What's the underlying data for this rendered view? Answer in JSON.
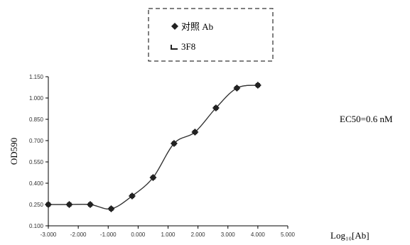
{
  "chart_data": {
    "type": "line",
    "title": "",
    "xlabel": "Log₁₀[Ab]",
    "ylabel": "OD590",
    "x_ticks": [
      "-3.000",
      "-2.000",
      "-1.000",
      "0.000",
      "1.000",
      "2.000",
      "3.000",
      "4.000",
      "5.000"
    ],
    "y_ticks": [
      "0.100",
      "0.250",
      "0.400",
      "0.550",
      "0.700",
      "0.850",
      "1.000",
      "1.150"
    ],
    "xlim": [
      -3,
      5
    ],
    "ylim": [
      0.1,
      1.15
    ],
    "legend": {
      "placement": "top-center",
      "entries": [
        "对照 Ab",
        "3F8"
      ]
    },
    "annotation": "EC50=0.6 nM",
    "series": [
      {
        "name": "对照 Ab",
        "marker": "diamond",
        "x": [
          -3.0,
          -2.3,
          -1.6,
          -0.9,
          -0.2,
          0.5,
          1.2,
          1.9,
          2.6,
          3.3,
          4.0
        ],
        "y": [
          0.25,
          0.25,
          0.25,
          0.22,
          0.31,
          0.44,
          0.68,
          0.76,
          0.93,
          1.07,
          1.09
        ]
      },
      {
        "name": "3F8",
        "marker": "square",
        "x": [
          -3.0,
          -2.3,
          -1.6,
          -0.9,
          -0.2,
          0.5,
          1.2,
          1.9,
          2.6,
          3.3,
          4.0
        ],
        "y": [
          0.25,
          0.25,
          0.25,
          0.22,
          0.31,
          0.44,
          0.68,
          0.76,
          0.93,
          1.07,
          1.09
        ]
      }
    ],
    "colors": {
      "line": "#333333",
      "marker": "#222222",
      "axis": "#000000"
    }
  }
}
